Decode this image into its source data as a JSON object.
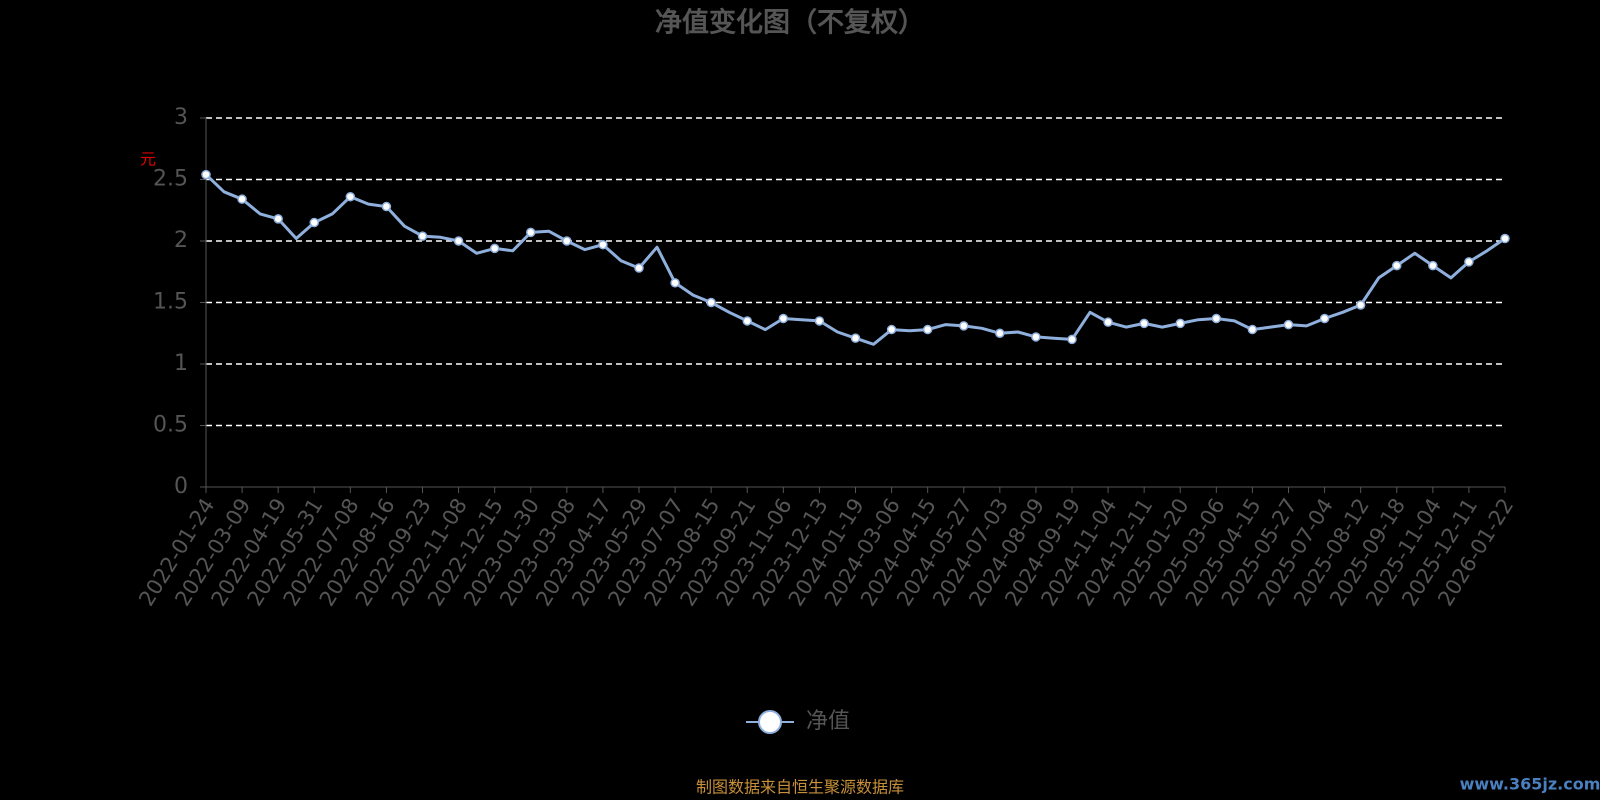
{
  "chart_data": {
    "type": "line",
    "title": "净值变化图（不复权）",
    "y_label": "元",
    "categories": [
      "2022-01-24",
      null,
      "2022-03-09",
      null,
      "2022-04-19",
      null,
      "2022-05-31",
      null,
      "2022-07-08",
      null,
      "2022-08-16",
      null,
      "2022-09-23",
      null,
      "2022-11-08",
      null,
      "2022-12-15",
      null,
      "2023-01-30",
      null,
      "2023-03-08",
      null,
      "2023-04-17",
      null,
      "2023-05-29",
      null,
      "2023-07-07",
      null,
      "2023-08-15",
      null,
      "2023-09-21",
      null,
      "2023-11-06",
      null,
      "2023-12-13",
      null,
      "2024-01-19",
      null,
      "2024-03-06",
      null,
      "2024-04-15",
      null,
      "2024-05-27",
      null,
      "2024-07-03",
      null,
      "2024-08-09",
      null,
      "2024-09-19",
      null,
      "2024-11-04",
      null,
      "2024-12-11",
      null,
      "2025-01-20",
      null,
      "2025-03-06",
      null,
      "2025-04-15",
      null,
      "2025-05-27",
      null,
      "2025-07-04",
      null,
      "2025-08-12",
      null,
      "2025-09-18",
      null,
      "2025-11-04",
      null,
      "2025-12-11",
      null,
      "2026-01-22"
    ],
    "series": [
      {
        "name": "净值",
        "color": "#8fb0dd",
        "values": [
          2.54,
          2.4,
          2.34,
          2.22,
          2.18,
          2.02,
          2.15,
          2.22,
          2.36,
          2.3,
          2.28,
          2.12,
          2.04,
          2.03,
          2.0,
          1.9,
          1.94,
          1.92,
          2.07,
          2.08,
          2.0,
          1.93,
          1.97,
          1.84,
          1.78,
          1.95,
          1.66,
          1.56,
          1.5,
          1.42,
          1.35,
          1.28,
          1.37,
          1.36,
          1.35,
          1.26,
          1.21,
          1.16,
          1.28,
          1.27,
          1.28,
          1.32,
          1.31,
          1.29,
          1.25,
          1.26,
          1.22,
          1.21,
          1.2,
          1.42,
          1.34,
          1.3,
          1.33,
          1.3,
          1.33,
          1.36,
          1.37,
          1.35,
          1.28,
          1.3,
          1.32,
          1.31,
          1.37,
          1.42,
          1.48,
          1.7,
          1.8,
          1.9,
          1.8,
          1.7,
          1.83,
          1.92,
          2.02
        ]
      }
    ],
    "ylim": [
      0,
      3
    ],
    "yticks": [
      0,
      0.5,
      1,
      1.5,
      2,
      2.5,
      3
    ],
    "grid": true,
    "legend": "bottom"
  },
  "source": "制图数据来自恒生聚源数据库",
  "watermark": "www.365jz.com"
}
